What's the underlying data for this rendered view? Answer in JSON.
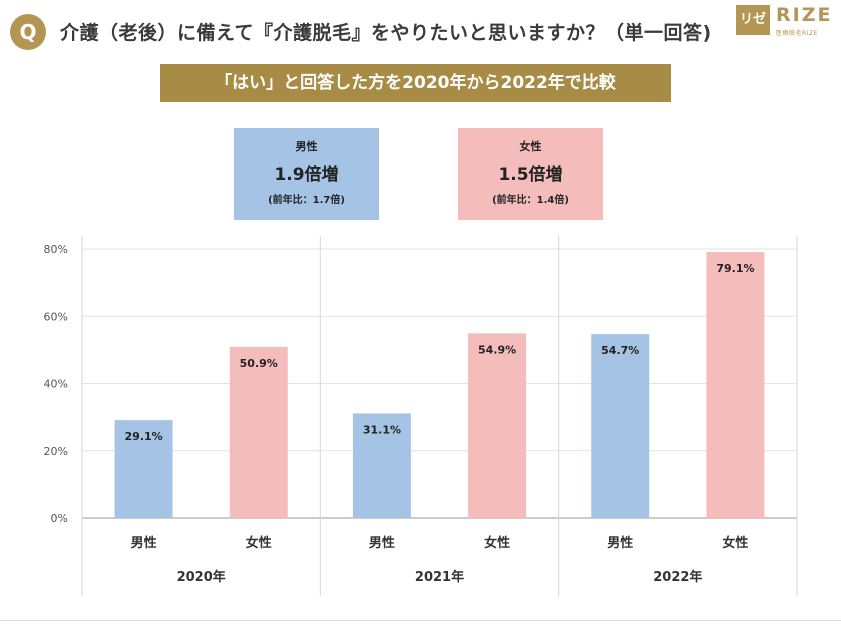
{
  "header": {
    "badge": "Q",
    "question": "介護（老後）に備えて『介護脱毛』をやりたいと思いますか？（単一回答)",
    "logo_mark": "リゼ",
    "logo_text": "RIZE",
    "logo_sub": "医療脱毛RIZE"
  },
  "banner": "「はい」と回答した方を2020年から2022年で比較",
  "summary": {
    "male": {
      "label": "男性",
      "main": "1.9倍増",
      "sub": "(前年比：1.7倍)",
      "color": "#a5c4e5"
    },
    "female": {
      "label": "女性",
      "main": "1.5倍増",
      "sub": "(前年比：1.4倍)",
      "color": "#f5bcbc"
    }
  },
  "chart_data": {
    "type": "bar",
    "ylim": [
      0,
      80
    ],
    "yticks": [
      "0%",
      "20%",
      "40%",
      "60%",
      "80%"
    ],
    "grid": true,
    "groups": [
      "2020年",
      "2021年",
      "2022年"
    ],
    "categories": [
      "男性",
      "女性"
    ],
    "series": [
      {
        "group": "2020年",
        "values": [
          29.1,
          50.9
        ],
        "labels": [
          "29.1%",
          "50.9%"
        ]
      },
      {
        "group": "2021年",
        "values": [
          31.1,
          54.9
        ],
        "labels": [
          "31.1%",
          "54.9%"
        ]
      },
      {
        "group": "2022年",
        "values": [
          54.7,
          79.1
        ],
        "labels": [
          "54.7%",
          "79.1%"
        ]
      }
    ],
    "colors": {
      "male": "#a5c4e5",
      "female": "#f5bcbc"
    }
  }
}
